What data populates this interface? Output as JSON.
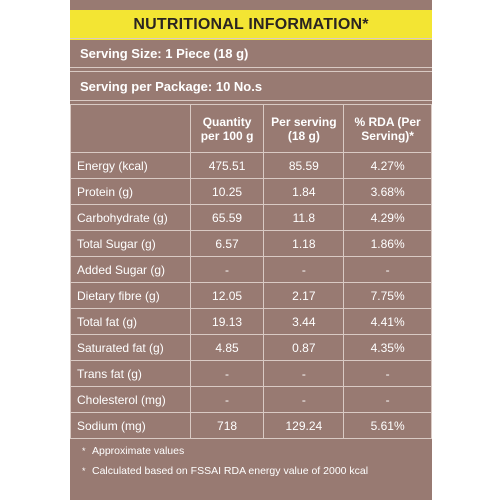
{
  "title": "NUTRITIONAL INFORMATION*",
  "serving_size": "Serving Size: 1 Piece (18 g)",
  "serving_per_package": "Serving per Package: 10 No.s",
  "table": {
    "headers": [
      "",
      "Quantity per 100 g",
      "Per serving (18 g)",
      "% RDA (Per Serving)*"
    ],
    "rows": [
      [
        "Energy (kcal)",
        "475.51",
        "85.59",
        "4.27%"
      ],
      [
        "Protein (g)",
        "10.25",
        "1.84",
        "3.68%"
      ],
      [
        "Carbohydrate (g)",
        "65.59",
        "11.8",
        "4.29%"
      ],
      [
        "Total Sugar (g)",
        "6.57",
        "1.18",
        "1.86%"
      ],
      [
        "Added Sugar (g)",
        "-",
        "-",
        "-"
      ],
      [
        "Dietary fibre (g)",
        "12.05",
        "2.17",
        "7.75%"
      ],
      [
        "Total fat (g)",
        "19.13",
        "3.44",
        "4.41%"
      ],
      [
        "Saturated fat (g)",
        "4.85",
        "0.87",
        "4.35%"
      ],
      [
        "Trans fat (g)",
        "-",
        "-",
        "-"
      ],
      [
        "Cholesterol (mg)",
        "-",
        "-",
        "-"
      ],
      [
        "Sodium (mg)",
        "718",
        "129.24",
        "5.61%"
      ]
    ]
  },
  "footnotes": [
    "Approximate values",
    "Calculated based on FSSAI RDA energy value of 2000 kcal"
  ],
  "bullet": "*",
  "colors": {
    "panel": "#987a72",
    "title_bar": "#f3e533",
    "text": "#ffffff"
  }
}
